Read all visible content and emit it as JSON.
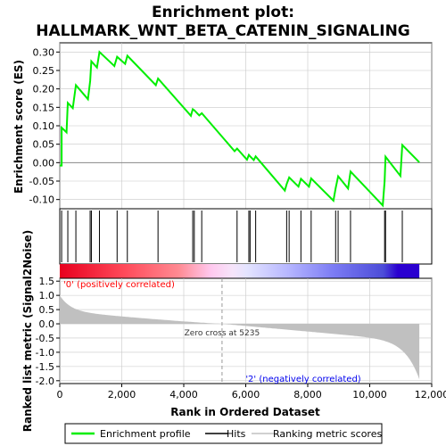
{
  "chart_data": {
    "type": "line",
    "title_line1": "Enrichment plot:",
    "title_line2": "HALLMARK_WNT_BETA_CATENIN_SIGNALING",
    "xlabel": "Rank in Ordered Dataset",
    "ylabel_top": "Enrichment score (ES)",
    "ylabel_bottom": "Ranked list metric (Signal2Noise)",
    "xlim": [
      0,
      12000
    ],
    "xticks": [
      0,
      2000,
      4000,
      6000,
      8000,
      10000,
      12000
    ],
    "xtick_labels": [
      "0",
      "2,000",
      "4,000",
      "6,000",
      "8,000",
      "10,000",
      "12,000"
    ],
    "es_ylim": [
      -0.125,
      0.325
    ],
    "es_yticks": [
      -0.1,
      -0.05,
      0.0,
      0.05,
      0.1,
      0.15,
      0.2,
      0.25,
      0.3
    ],
    "es_ytick_labels": [
      "-0.10",
      "-0.05",
      "0.00",
      "0.05",
      "0.10",
      "0.15",
      "0.20",
      "0.25",
      "0.30"
    ],
    "metric_ylim": [
      -2.1,
      1.6
    ],
    "metric_yticks": [
      -2.0,
      -1.5,
      -1.0,
      -0.5,
      0.0,
      0.5,
      1.0,
      1.5
    ],
    "metric_ytick_labels": [
      "-2.0",
      "-1.5",
      "-1.0",
      "-0.5",
      "0.0",
      "0.5",
      "1.0",
      "1.5"
    ],
    "n_genes": 11600,
    "hits": [
      60,
      260,
      520,
      980,
      1020,
      1280,
      1850,
      2180,
      3170,
      4290,
      4340,
      4580,
      5720,
      6100,
      6140,
      6320,
      7320,
      7400,
      7780,
      8110,
      8900,
      8980,
      9380,
      10480,
      10510,
      11050
    ],
    "es_profile": {
      "x": [
        0,
        60,
        60,
        220,
        260,
        420,
        520,
        910,
        980,
        1020,
        1200,
        1280,
        1760,
        1850,
        2110,
        2180,
        3100,
        3170,
        4230,
        4290,
        4340,
        4500,
        4580,
        5640,
        5720,
        6040,
        6100,
        6140,
        6260,
        6320,
        7260,
        7320,
        7400,
        7700,
        7780,
        8040,
        8110,
        8830,
        8900,
        8980,
        9300,
        9380,
        10420,
        10480,
        10510,
        10990,
        11050,
        11600
      ],
      "y": [
        -0.008,
        -0.008,
        0.095,
        0.082,
        0.162,
        0.148,
        0.21,
        0.172,
        0.222,
        0.275,
        0.258,
        0.3,
        0.262,
        0.287,
        0.268,
        0.29,
        0.21,
        0.228,
        0.127,
        0.145,
        0.142,
        0.128,
        0.134,
        0.031,
        0.038,
        0.008,
        0.021,
        0.017,
        0.007,
        0.017,
        -0.076,
        -0.058,
        -0.04,
        -0.065,
        -0.044,
        -0.065,
        -0.043,
        -0.103,
        -0.069,
        -0.037,
        -0.07,
        -0.024,
        -0.116,
        -0.05,
        0.016,
        -0.036,
        0.048,
        0.001
      ]
    },
    "metric": {
      "start": 1.0,
      "end": -1.95,
      "zero_cross_rank": 5235
    },
    "annotations": {
      "positive_label": "'0' (positively correlated)",
      "negative_label": "'2' (negatively correlated)",
      "zero_cross_label": "Zero cross at 5235"
    },
    "legend": [
      {
        "name": "Enrichment profile",
        "color": "#00ee00"
      },
      {
        "name": "Hits",
        "color": "#000000"
      },
      {
        "name": "Ranking metric scores",
        "color": "#c0c0c0"
      }
    ],
    "legend_position": "bottom",
    "colors": {
      "es_line": "#00ee00",
      "hit": "#000000",
      "metric_fill": "#c0c0c0",
      "positive_text": "#ff0000",
      "negative_text": "#0000ee",
      "grid": "#c8c8c8"
    }
  }
}
